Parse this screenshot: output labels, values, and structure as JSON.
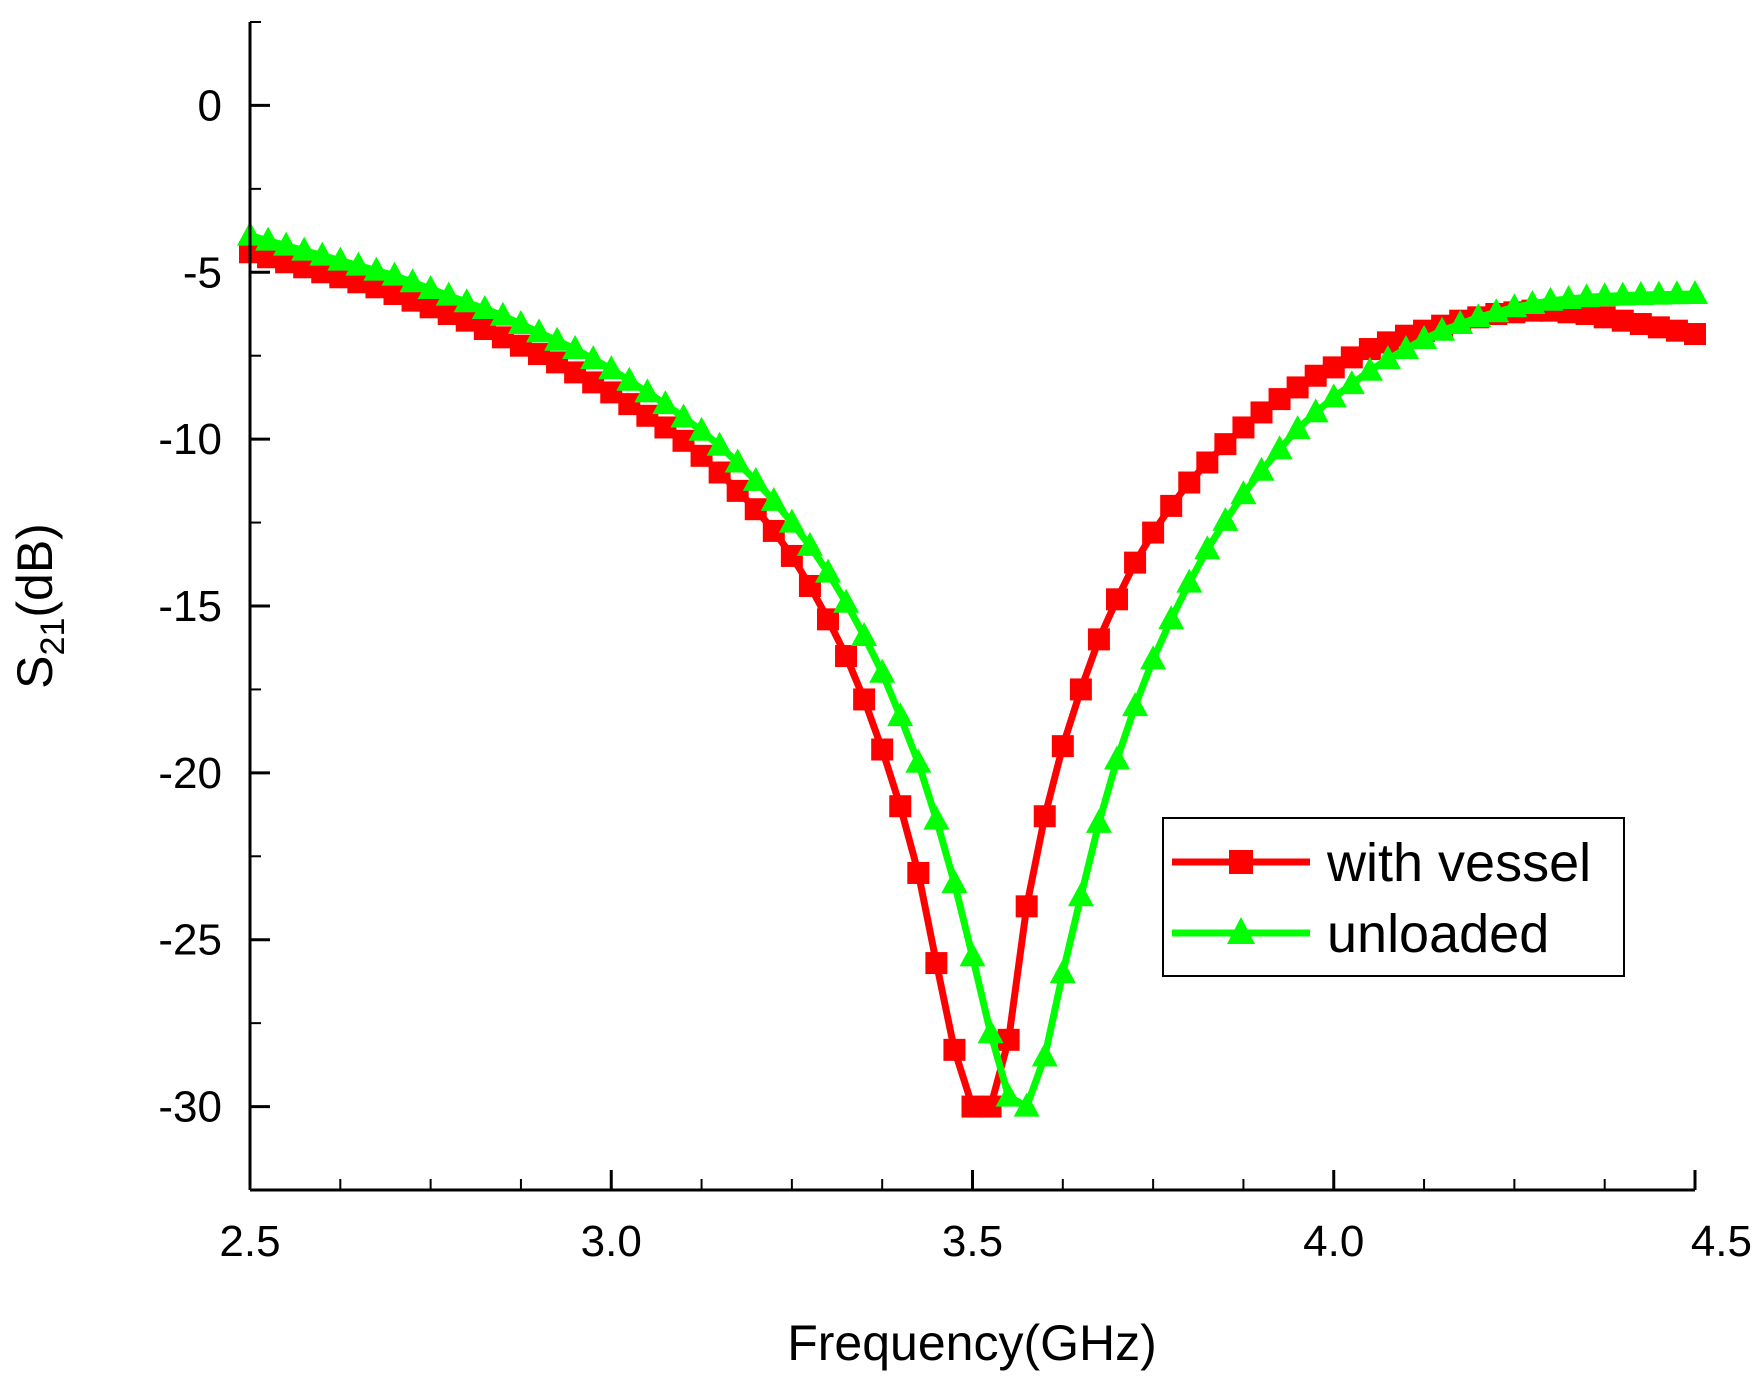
{
  "chart_data": {
    "type": "line",
    "title": "",
    "xlabel": "Frequency(GHz)",
    "ylabel_main": "S",
    "ylabel_sub": "21",
    "ylabel_tail": "(dB)",
    "xlim": [
      2.5,
      4.5
    ],
    "ylim": [
      -32.5,
      2.5
    ],
    "xticks": [
      2.5,
      3.0,
      3.5,
      4.0,
      4.5
    ],
    "xtick_labels": [
      "2.5",
      "3.0",
      "3.5",
      "4.0",
      "4.5"
    ],
    "yticks": [
      0,
      -5,
      -10,
      -15,
      -20,
      -25,
      -30
    ],
    "ytick_labels": [
      "0",
      "-5",
      "-10",
      "-15",
      "-20",
      "-25",
      "-30"
    ],
    "legend_position": "lower-right",
    "series": [
      {
        "name": "with vessel",
        "color": "#ff0000",
        "marker": "square",
        "x": [
          2.5,
          2.525,
          2.55,
          2.575,
          2.6,
          2.625,
          2.65,
          2.675,
          2.7,
          2.725,
          2.75,
          2.775,
          2.8,
          2.825,
          2.85,
          2.875,
          2.9,
          2.925,
          2.95,
          2.975,
          3.0,
          3.025,
          3.05,
          3.075,
          3.1,
          3.125,
          3.15,
          3.175,
          3.2,
          3.225,
          3.25,
          3.275,
          3.3,
          3.325,
          3.35,
          3.375,
          3.4,
          3.425,
          3.45,
          3.475,
          3.5,
          3.525,
          3.55,
          3.575,
          3.6,
          3.625,
          3.65,
          3.675,
          3.7,
          3.725,
          3.75,
          3.775,
          3.8,
          3.825,
          3.85,
          3.875,
          3.9,
          3.925,
          3.95,
          3.975,
          4.0,
          4.025,
          4.05,
          4.075,
          4.1,
          4.125,
          4.15,
          4.175,
          4.2,
          4.225,
          4.25,
          4.275,
          4.3,
          4.325,
          4.35,
          4.375,
          4.4,
          4.425,
          4.45,
          4.475,
          4.5
        ],
        "values": [
          -4.4,
          -4.55,
          -4.7,
          -4.85,
          -5.0,
          -5.15,
          -5.3,
          -5.45,
          -5.65,
          -5.85,
          -6.05,
          -6.25,
          -6.45,
          -6.7,
          -6.95,
          -7.2,
          -7.45,
          -7.7,
          -8.0,
          -8.3,
          -8.6,
          -8.95,
          -9.3,
          -9.65,
          -10.05,
          -10.5,
          -11.0,
          -11.55,
          -12.1,
          -12.75,
          -13.5,
          -14.4,
          -15.4,
          -16.5,
          -17.8,
          -19.3,
          -21.0,
          -23.0,
          -25.7,
          -28.3,
          -30.0,
          -30.0,
          -28.0,
          -24.0,
          -21.3,
          -19.2,
          -17.5,
          -16.0,
          -14.8,
          -13.7,
          -12.8,
          -12.0,
          -11.3,
          -10.7,
          -10.15,
          -9.65,
          -9.2,
          -8.8,
          -8.45,
          -8.1,
          -7.85,
          -7.55,
          -7.3,
          -7.1,
          -6.9,
          -6.75,
          -6.6,
          -6.45,
          -6.35,
          -6.25,
          -6.2,
          -6.15,
          -6.15,
          -6.2,
          -6.25,
          -6.35,
          -6.45,
          -6.55,
          -6.65,
          -6.75,
          -6.85
        ]
      },
      {
        "name": "unloaded",
        "color": "#00ff00",
        "marker": "triangle",
        "x": [
          2.5,
          2.525,
          2.55,
          2.575,
          2.6,
          2.625,
          2.65,
          2.675,
          2.7,
          2.725,
          2.75,
          2.775,
          2.8,
          2.825,
          2.85,
          2.875,
          2.9,
          2.925,
          2.95,
          2.975,
          3.0,
          3.025,
          3.05,
          3.075,
          3.1,
          3.125,
          3.15,
          3.175,
          3.2,
          3.225,
          3.25,
          3.275,
          3.3,
          3.325,
          3.35,
          3.375,
          3.4,
          3.425,
          3.45,
          3.475,
          3.5,
          3.525,
          3.55,
          3.575,
          3.6,
          3.625,
          3.65,
          3.675,
          3.7,
          3.725,
          3.75,
          3.775,
          3.8,
          3.825,
          3.85,
          3.875,
          3.9,
          3.925,
          3.95,
          3.975,
          4.0,
          4.025,
          4.05,
          4.075,
          4.1,
          4.125,
          4.15,
          4.175,
          4.2,
          4.225,
          4.25,
          4.275,
          4.3,
          4.325,
          4.35,
          4.375,
          4.4,
          4.425,
          4.45,
          4.475,
          4.5
        ],
        "values": [
          -3.9,
          -4.05,
          -4.2,
          -4.35,
          -4.5,
          -4.65,
          -4.8,
          -4.95,
          -5.1,
          -5.3,
          -5.5,
          -5.7,
          -5.9,
          -6.1,
          -6.3,
          -6.55,
          -6.8,
          -7.05,
          -7.3,
          -7.6,
          -7.9,
          -8.25,
          -8.6,
          -8.95,
          -9.35,
          -9.75,
          -10.2,
          -10.7,
          -11.25,
          -11.85,
          -12.5,
          -13.2,
          -14.0,
          -14.9,
          -15.9,
          -17.0,
          -18.3,
          -19.7,
          -21.4,
          -23.3,
          -25.5,
          -27.8,
          -29.7,
          -30.0,
          -28.5,
          -26.0,
          -23.7,
          -21.5,
          -19.6,
          -18.0,
          -16.6,
          -15.4,
          -14.3,
          -13.3,
          -12.45,
          -11.65,
          -10.95,
          -10.3,
          -9.7,
          -9.2,
          -8.75,
          -8.35,
          -7.95,
          -7.6,
          -7.3,
          -7.0,
          -6.75,
          -6.55,
          -6.35,
          -6.2,
          -6.05,
          -5.95,
          -5.85,
          -5.8,
          -5.75,
          -5.72,
          -5.7,
          -5.68,
          -5.67,
          -5.66,
          -5.65
        ]
      }
    ]
  }
}
